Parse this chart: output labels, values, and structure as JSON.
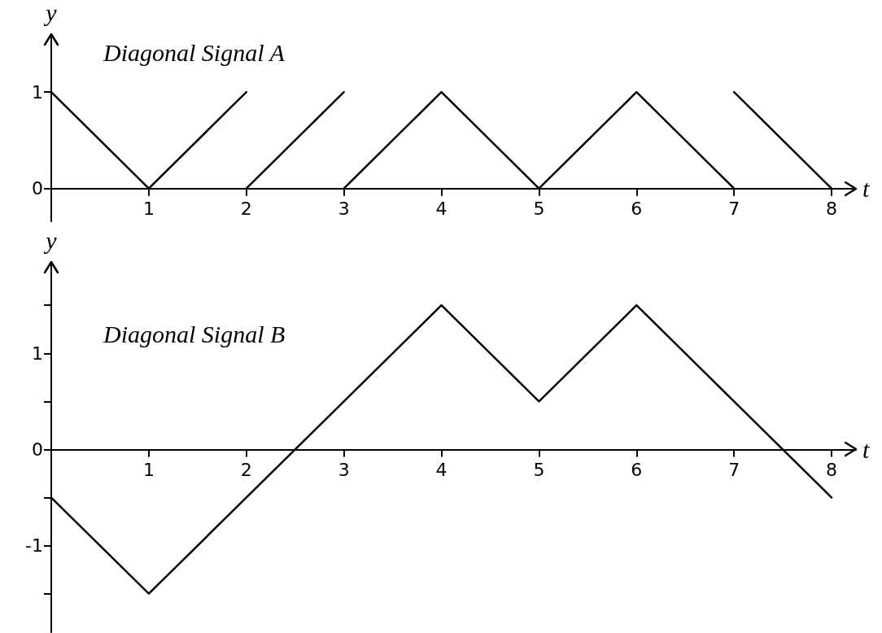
{
  "chart_data": [
    {
      "type": "line",
      "title": "Diagonal Signal A",
      "xlabel": "t",
      "ylabel": "y",
      "series": [
        {
          "color": "#000000",
          "x": [
            0,
            1,
            2
          ],
          "values": [
            1,
            0,
            1
          ]
        },
        {
          "color": "#000000",
          "x": [
            2,
            3
          ],
          "values": [
            0,
            1
          ]
        },
        {
          "color": "#000000",
          "x": [
            3,
            4,
            5,
            6,
            7
          ],
          "values": [
            0,
            1,
            0,
            1,
            0
          ]
        },
        {
          "color": "#000000",
          "x": [
            7,
            8
          ],
          "values": [
            1,
            0
          ]
        }
      ],
      "xlim": [
        0,
        8.25
      ],
      "xticks": [
        1,
        2,
        3,
        4,
        5,
        6,
        7,
        8
      ],
      "ylim": [
        -0.34,
        1.6
      ],
      "yticks": [
        0,
        1
      ]
    },
    {
      "type": "line",
      "title": "Diagonal Signal B",
      "xlabel": "t",
      "ylabel": "y",
      "series": [
        {
          "color": "#000000",
          "x": [
            0,
            1,
            4,
            5,
            6,
            8
          ],
          "values": [
            -0.5,
            -1.5,
            1.5,
            0.5,
            1.5,
            -0.5
          ]
        }
      ],
      "xlim": [
        0,
        8.25
      ],
      "xticks": [
        1,
        2,
        3,
        4,
        5,
        6,
        7,
        8
      ],
      "ylim": [
        -1.9,
        1.95
      ],
      "yticks": [
        {
          "value": -1.5,
          "label": null
        },
        -1,
        {
          "value": -0.5,
          "label": null
        },
        0,
        {
          "value": 0.5,
          "label": null
        },
        1,
        {
          "value": 1.5,
          "label": null
        }
      ]
    }
  ]
}
